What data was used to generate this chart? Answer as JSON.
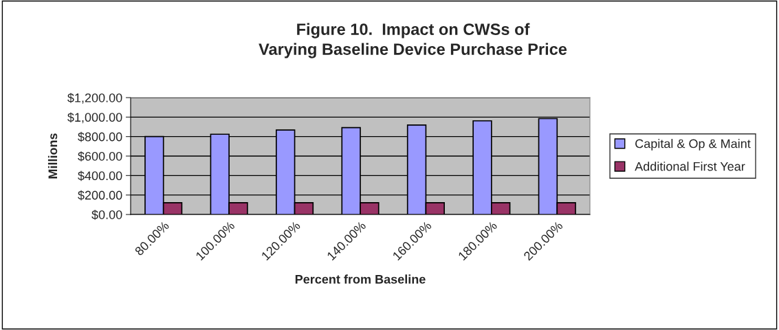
{
  "chart_data": {
    "type": "bar",
    "title": "Figure 10.  Impact on CWSs of\nVarying Baseline Device Purchase Price",
    "xlabel": "Percent from Baseline",
    "ylabel": "Millions",
    "categories": [
      "80.00%",
      "100.00%",
      "120.00%",
      "140.00%",
      "160.00%",
      "180.00%",
      "200.00%"
    ],
    "series": [
      {
        "name": "Capital & Op & Maint",
        "color": "#9999ff",
        "values": [
          800,
          824,
          867,
          892,
          919,
          962,
          985
        ]
      },
      {
        "name": "Additional First Year",
        "color": "#993366",
        "values": [
          121,
          121,
          121,
          121,
          121,
          121,
          121
        ]
      }
    ],
    "ylim": [
      0,
      1200
    ],
    "yticks": [
      {
        "value": 0,
        "label": "$0.00"
      },
      {
        "value": 200,
        "label": "$200.00"
      },
      {
        "value": 400,
        "label": "$400.00"
      },
      {
        "value": 600,
        "label": "$600.00"
      },
      {
        "value": 800,
        "label": "$800.00"
      },
      {
        "value": 1000,
        "label": "$1,000.00"
      },
      {
        "value": 1200,
        "label": "$1,200.00"
      }
    ],
    "grid": "y",
    "legend": "right"
  }
}
